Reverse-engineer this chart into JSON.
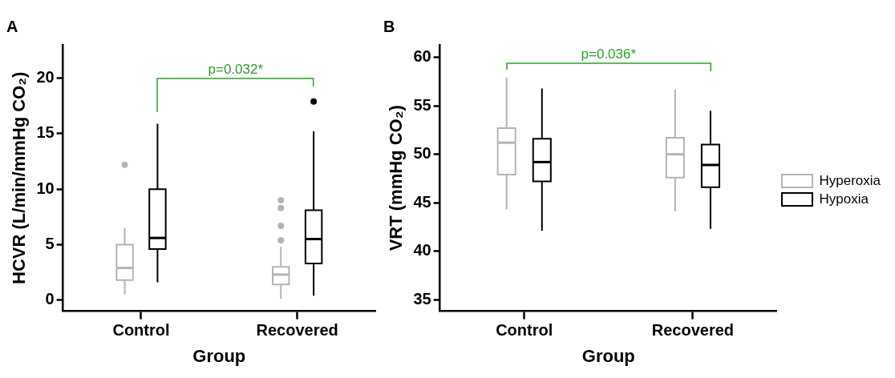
{
  "chart_data": [
    {
      "type": "box",
      "title": "A",
      "xlabel": "Group",
      "ylabel": "HCVR (L/min/mmHg CO₂)",
      "categories": [
        "Control",
        "Recovered"
      ],
      "ylim": [
        -1,
        23
      ],
      "yticks": [
        0,
        5,
        10,
        15,
        20
      ],
      "annotations": [
        "p=0.032*"
      ],
      "series": [
        {
          "color": "#b4b4b4",
          "boxes": [
            {
              "low": 0.5,
              "q1": 1.8,
              "median": 2.9,
              "q3": 5.0,
              "high": 6.5,
              "outliers": [
                12.2
              ]
            },
            {
              "low": 0.1,
              "q1": 1.4,
              "median": 2.3,
              "q3": 3.0,
              "high": 4.8,
              "outliers": [
                5.4,
                6.7,
                8.3,
                9.0
              ]
            }
          ]
        },
        {
          "color": "#000000",
          "boxes": [
            {
              "low": 1.6,
              "q1": 4.6,
              "median": 5.6,
              "q3": 10.0,
              "high": 15.9
            },
            {
              "low": 0.4,
              "q1": 3.3,
              "median": 5.5,
              "q3": 8.1,
              "high": 15.2,
              "outliers": [
                17.9
              ]
            }
          ]
        }
      ]
    },
    {
      "type": "box",
      "title": "B",
      "xlabel": "Group",
      "ylabel": "VRT (mmHg CO₂)",
      "categories": [
        "Control",
        "Recovered"
      ],
      "ylim": [
        33.8,
        61.3
      ],
      "yticks": [
        35,
        40,
        45,
        50,
        55,
        60
      ],
      "annotations": [
        "p=0.036*"
      ],
      "legend": "right",
      "series": [
        {
          "name": "Hyperoxia",
          "color": "#b4b4b4",
          "boxes": [
            {
              "low": 44.3,
              "q1": 47.9,
              "median": 51.2,
              "q3": 52.7,
              "high": 57.9
            },
            {
              "low": 44.1,
              "q1": 47.6,
              "median": 50.0,
              "q3": 51.7,
              "high": 56.7
            }
          ]
        },
        {
          "name": "Hypoxia",
          "color": "#000000",
          "boxes": [
            {
              "low": 42.1,
              "q1": 47.2,
              "median": 49.2,
              "q3": 51.6,
              "high": 56.8
            },
            {
              "low": 42.3,
              "q1": 46.6,
              "median": 48.9,
              "q3": 51.0,
              "high": 54.5
            }
          ]
        }
      ]
    }
  ]
}
